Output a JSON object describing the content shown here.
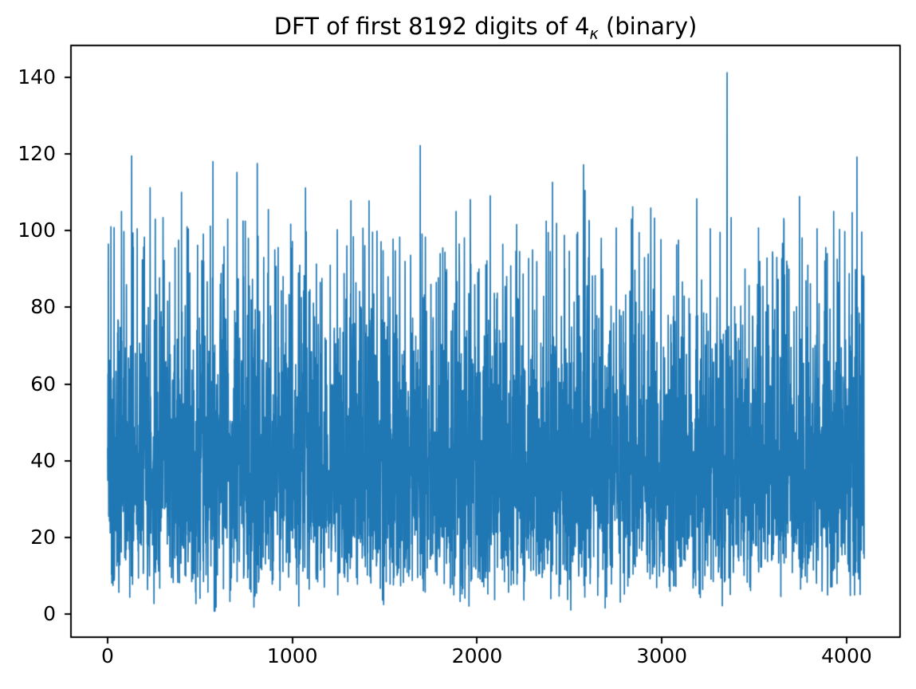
{
  "figure": {
    "title": {
      "text": "DFT of first 8192 digits of 4_κ (binary)",
      "prefix": "DFT of first 8192 digits of 4",
      "subscript": "κ",
      "suffix": " (binary)"
    }
  },
  "chart_data": {
    "type": "line",
    "title": "DFT of first 8192 digits of 4_κ (binary)",
    "xlabel": "",
    "ylabel": "",
    "grid": false,
    "legend": null,
    "line_color": "#1f77b4",
    "spine_color": "#000000",
    "text_color": "#000000",
    "background_color": "#ffffff",
    "n_points": 4096,
    "x_start": 0,
    "x_step": 1,
    "xlim": [
      -198.5,
      4289.2
    ],
    "ylim": [
      -6.0,
      148.3
    ],
    "x_ticks": [
      {
        "value": 0,
        "label": "0"
      },
      {
        "value": 1000,
        "label": "1000"
      },
      {
        "value": 2000,
        "label": "2000"
      },
      {
        "value": 3000,
        "label": "3000"
      },
      {
        "value": 4000,
        "label": "4000"
      }
    ],
    "y_ticks": [
      {
        "value": 0,
        "label": "0"
      },
      {
        "value": 20,
        "label": "20"
      },
      {
        "value": 40,
        "label": "40"
      },
      {
        "value": 60,
        "label": "60"
      },
      {
        "value": 80,
        "label": "80"
      },
      {
        "value": 100,
        "label": "100"
      },
      {
        "value": 120,
        "label": "120"
      },
      {
        "value": 140,
        "label": "140"
      }
    ],
    "series_description": "Magnitude spectrum |DFT| of first 8192 binary digits; Rayleigh-distributed noise, sigma ≈ 32, dense band ≈ 10–80, global max ≈ 141 at bin ≈ 3353",
    "value_range": [
      0.8,
      141.2
    ],
    "synthesis": {
      "distribution": "rayleigh",
      "sigma": 32,
      "seed": 42,
      "tail_compress_start": 98,
      "tail_compress_factor": 0.4,
      "min_value": 0.8
    },
    "peaks": [
      [
        4,
        96.5
      ],
      [
        18,
        101.0
      ],
      [
        35,
        100.8
      ],
      [
        75,
        105.0
      ],
      [
        130,
        119.5
      ],
      [
        160,
        100.5
      ],
      [
        195,
        95.7
      ],
      [
        230,
        111.2
      ],
      [
        258,
        103.0
      ],
      [
        300,
        103.4
      ],
      [
        335,
        86.5
      ],
      [
        365,
        95.5
      ],
      [
        400,
        110.0
      ],
      [
        430,
        101.0
      ],
      [
        487,
        96.2
      ],
      [
        520,
        92.0
      ],
      [
        570,
        118.0
      ],
      [
        610,
        86.0
      ],
      [
        650,
        103.0
      ],
      [
        700,
        115.2
      ],
      [
        735,
        88.0
      ],
      [
        762,
        98.0
      ],
      [
        810,
        117.5
      ],
      [
        845,
        93.0
      ],
      [
        870,
        105.5
      ],
      [
        905,
        95.0
      ],
      [
        950,
        88.0
      ],
      [
        1000,
        97.2
      ],
      [
        1040,
        91.0
      ],
      [
        1090,
        84.0
      ],
      [
        1130,
        91.3
      ],
      [
        1205,
        91.0
      ],
      [
        1280,
        88.8
      ],
      [
        1330,
        98.4
      ],
      [
        1415,
        107.8
      ],
      [
        1480,
        97.1
      ],
      [
        1545,
        97.8
      ],
      [
        1610,
        92.0
      ],
      [
        1692,
        122.2
      ],
      [
        1750,
        86.0
      ],
      [
        1800,
        94.0
      ],
      [
        1886,
        105.0
      ],
      [
        1963,
        108.1
      ],
      [
        2010,
        90.0
      ],
      [
        2071,
        109.1
      ],
      [
        2160,
        88.0
      ],
      [
        2230,
        94.6
      ],
      [
        2300,
        95.0
      ],
      [
        2408,
        112.6
      ],
      [
        2472,
        98.8
      ],
      [
        2540,
        99.0
      ],
      [
        2576,
        117.2
      ],
      [
        2606,
        102.7
      ],
      [
        2680,
        90.0
      ],
      [
        2753,
        100.7
      ],
      [
        2835,
        103.0
      ],
      [
        2877,
        99.5
      ],
      [
        2940,
        105.9
      ],
      [
        2995,
        97.7
      ],
      [
        3080,
        96.3
      ],
      [
        3189,
        108.3
      ],
      [
        3262,
        100.5
      ],
      [
        3353,
        141.2
      ],
      [
        3375,
        103.4
      ],
      [
        3450,
        90.0
      ],
      [
        3530,
        92.0
      ],
      [
        3600,
        93.0
      ],
      [
        3653,
        96.7
      ],
      [
        3745,
        108.9
      ],
      [
        3790,
        91.0
      ],
      [
        3840,
        100.5
      ],
      [
        3895,
        94.0
      ],
      [
        3930,
        105.0
      ],
      [
        3990,
        99.8
      ],
      [
        4030,
        104.7
      ],
      [
        4056,
        119.2
      ],
      [
        4085,
        88.5
      ]
    ]
  }
}
